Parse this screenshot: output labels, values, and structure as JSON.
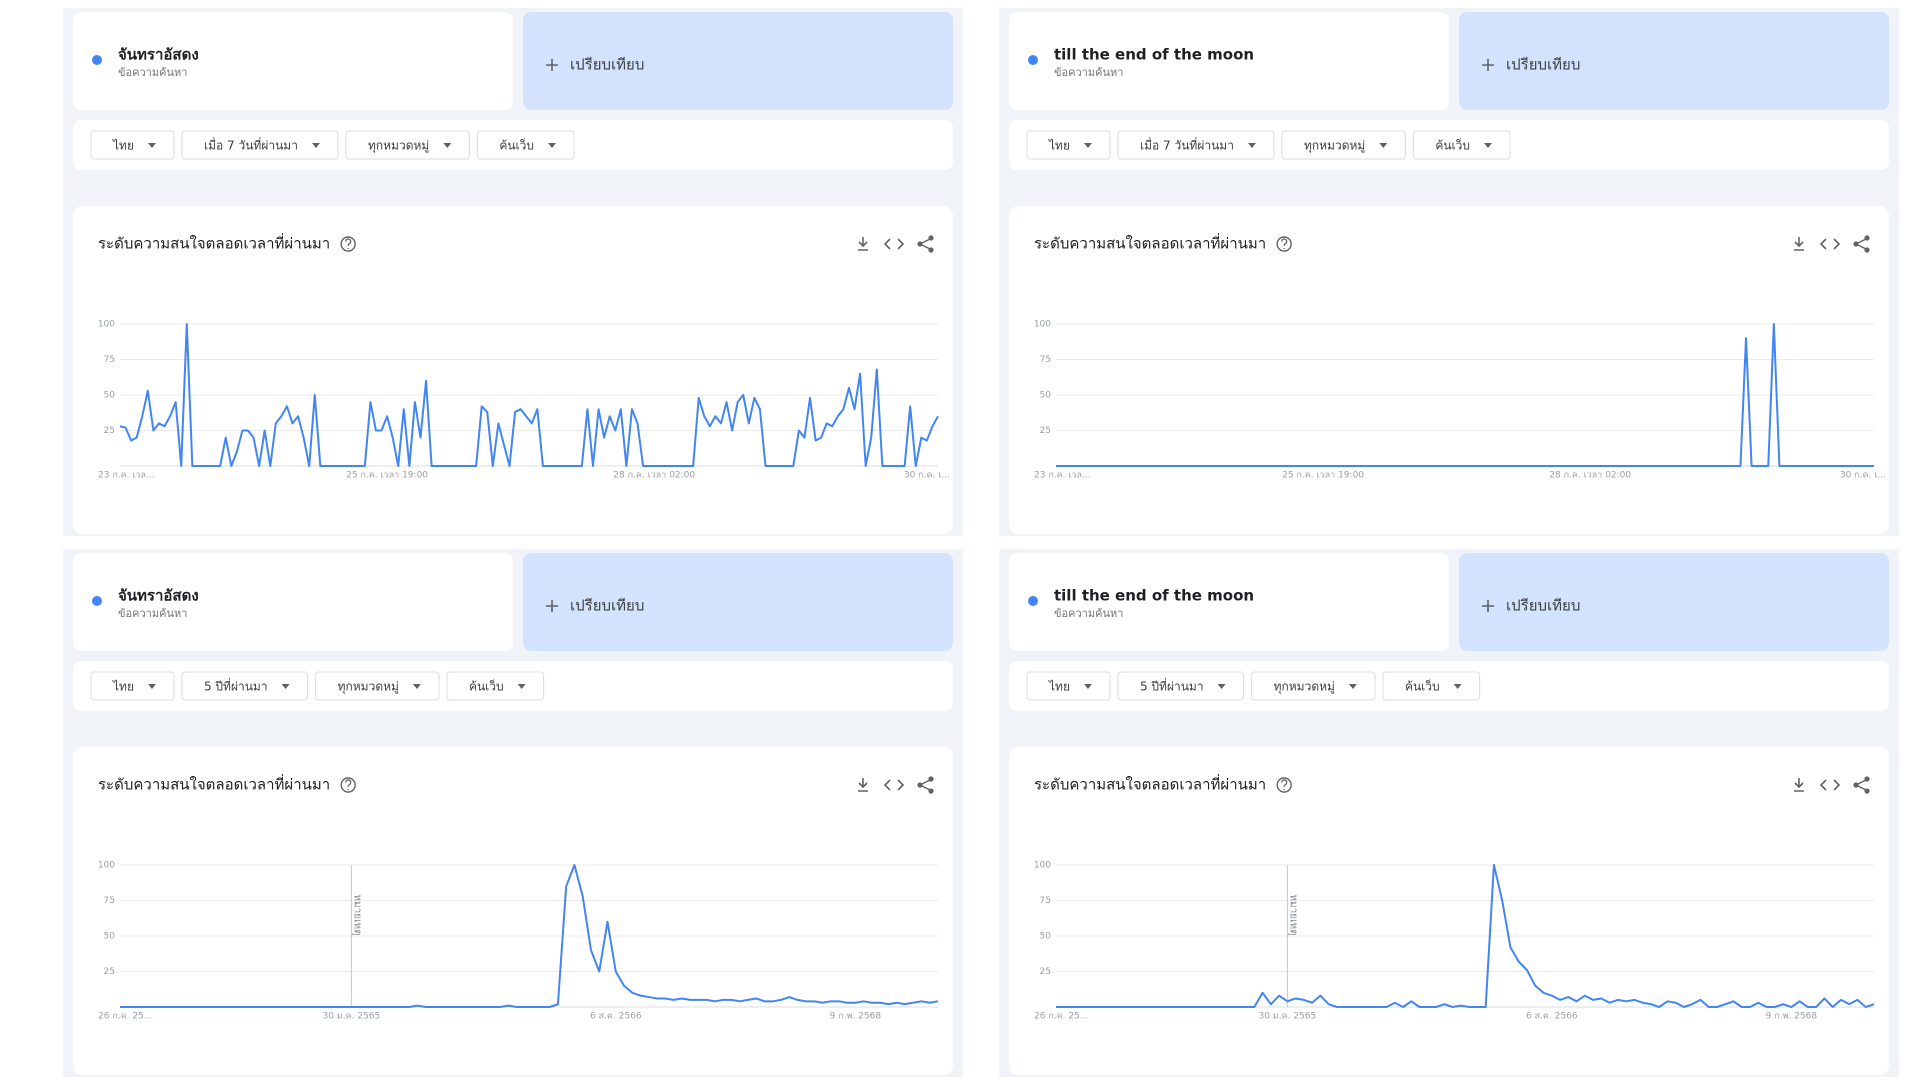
{
  "panels": [
    {
      "term": "จันทราอัสดง",
      "term_sub": "ข้อความค้นหา",
      "compare": "เปรียบเทียบ",
      "filters": [
        "ไทย",
        "เมื่อ 7 วันที่ผ่านมา",
        "ทุกหมวดหมู่",
        "ค้นเว็บ"
      ]
    },
    {
      "term": "till the end of the moon",
      "term_sub": "ข้อความค้นหา",
      "compare": "เปรียบเทียบ",
      "filters": [
        "ไทย",
        "เมื่อ 7 วันที่ผ่านมา",
        "ทุกหมวดหมู่",
        "ค้นเว็บ"
      ]
    },
    {
      "term": "จันทราอัสดง",
      "term_sub": "ข้อความค้นหา",
      "compare": "เปรียบเทียบ",
      "filters": [
        "ไทย",
        "5 ปีที่ผ่านมา",
        "ทุกหมวดหมู่",
        "ค้นเว็บ"
      ]
    },
    {
      "term": "till the end of the moon",
      "term_sub": "ข้อความค้นหา",
      "compare": "เปรียบเทียบ",
      "filters": [
        "ไทย",
        "5 ปีที่ผ่านมา",
        "ทุกหมวดหมู่",
        "ค้นเว็บ"
      ]
    }
  ],
  "chart_data": [
    {
      "type": "line",
      "title": "ระดับความสนใจตลอดเวลาที่ผ่านมา",
      "color": "#4285f4",
      "ylim": [
        0,
        100
      ],
      "yticks": [
        25,
        50,
        75,
        100
      ],
      "grid": true,
      "categories": [
        "23 ก.ค. เวล...",
        null,
        null,
        null,
        null,
        null,
        null,
        null,
        null,
        null,
        null,
        null,
        null,
        null,
        null,
        null,
        null,
        null,
        null,
        null,
        null,
        null,
        null,
        null,
        null,
        null,
        null,
        null,
        null,
        null,
        null,
        null,
        null,
        null,
        null,
        null,
        null,
        null,
        null,
        null,
        null,
        null,
        null,
        null,
        null,
        null,
        null,
        null,
        "25 ก.ค. เวลา 19:00",
        null,
        null,
        null,
        null,
        null,
        null,
        null,
        null,
        null,
        null,
        null,
        null,
        null,
        null,
        null,
        null,
        null,
        null,
        null,
        null,
        null,
        null,
        null,
        null,
        null,
        null,
        null,
        null,
        null,
        null,
        null,
        null,
        null,
        null,
        null,
        null,
        null,
        null,
        null,
        null,
        null,
        null,
        null,
        null,
        null,
        null,
        null,
        "28 ก.ค. เวลา 02:00",
        null,
        null,
        null,
        null,
        null,
        null,
        null,
        null,
        null,
        null,
        null,
        null,
        null,
        null,
        null,
        null,
        null,
        null,
        null,
        null,
        null,
        null,
        null,
        null,
        null,
        null,
        null,
        null,
        null,
        null,
        null,
        null,
        null,
        null,
        null,
        null,
        null,
        null,
        null,
        null,
        null,
        null,
        null,
        null,
        null,
        null,
        null,
        null,
        "30 ก.ค. เ...",
        null,
        null
      ],
      "values": [
        28,
        27,
        18,
        20,
        35,
        53,
        25,
        30,
        28,
        35,
        45,
        0,
        100,
        0,
        0,
        0,
        0,
        0,
        0,
        20,
        0,
        10,
        25,
        25,
        20,
        0,
        25,
        0,
        30,
        35,
        42,
        30,
        35,
        20,
        0,
        50,
        0,
        0,
        0,
        0,
        0,
        0,
        0,
        0,
        0,
        45,
        25,
        25,
        35,
        20,
        0,
        40,
        0,
        45,
        20,
        60,
        0,
        0,
        0,
        0,
        0,
        0,
        0,
        0,
        0,
        42,
        38,
        0,
        30,
        15,
        0,
        38,
        40,
        35,
        30,
        40,
        0,
        0,
        0,
        0,
        0,
        0,
        0,
        0,
        40,
        0,
        40,
        20,
        35,
        25,
        40,
        0,
        40,
        30,
        0,
        0,
        0,
        0,
        0,
        0,
        0,
        0,
        0,
        0,
        48,
        35,
        28,
        35,
        30,
        45,
        25,
        45,
        50,
        30,
        48,
        40,
        0,
        0,
        0,
        0,
        0,
        0,
        25,
        20,
        48,
        18,
        20,
        30,
        28,
        35,
        40,
        55,
        40,
        65,
        0,
        20,
        68,
        0,
        0,
        0,
        0,
        0,
        42,
        0,
        20,
        18,
        28,
        35
      ]
    },
    {
      "type": "line",
      "title": "ระดับความสนใจตลอดเวลาที่ผ่านมา",
      "color": "#4285f4",
      "ylim": [
        0,
        100
      ],
      "yticks": [
        25,
        50,
        75,
        100
      ],
      "grid": true,
      "categories": [
        "23 ก.ค. เวล...",
        null,
        null,
        null,
        null,
        null,
        null,
        null,
        null,
        null,
        null,
        null,
        null,
        null,
        null,
        null,
        null,
        null,
        null,
        null,
        null,
        null,
        null,
        null,
        null,
        null,
        null,
        null,
        null,
        null,
        null,
        null,
        null,
        null,
        null,
        null,
        null,
        null,
        null,
        null,
        null,
        null,
        null,
        null,
        null,
        null,
        null,
        null,
        "25 ก.ค. เวลา 19:00",
        null,
        null,
        null,
        null,
        null,
        null,
        null,
        null,
        null,
        null,
        null,
        null,
        null,
        null,
        null,
        null,
        null,
        null,
        null,
        null,
        null,
        null,
        null,
        null,
        null,
        null,
        null,
        null,
        null,
        null,
        null,
        null,
        null,
        null,
        null,
        null,
        null,
        null,
        null,
        null,
        null,
        null,
        null,
        null,
        null,
        null,
        null,
        "28 ก.ค. เวลา 02:00",
        null,
        null,
        null,
        null,
        null,
        null,
        null,
        null,
        null,
        null,
        null,
        null,
        null,
        null,
        null,
        null,
        null,
        null,
        null,
        null,
        null,
        null,
        null,
        null,
        null,
        null,
        null,
        null,
        null,
        null,
        null,
        null,
        null,
        null,
        null,
        null,
        null,
        null,
        null,
        null,
        null,
        null,
        null,
        null,
        null,
        null,
        null,
        null,
        "30 ก.ค. เ...",
        null,
        null
      ],
      "values": [
        0,
        0,
        0,
        0,
        0,
        0,
        0,
        0,
        0,
        0,
        0,
        0,
        0,
        0,
        0,
        0,
        0,
        0,
        0,
        0,
        0,
        0,
        0,
        0,
        0,
        0,
        0,
        0,
        0,
        0,
        0,
        0,
        0,
        0,
        0,
        0,
        0,
        0,
        0,
        0,
        0,
        0,
        0,
        0,
        0,
        0,
        0,
        0,
        0,
        0,
        0,
        0,
        0,
        0,
        0,
        0,
        0,
        0,
        0,
        0,
        0,
        0,
        0,
        0,
        0,
        0,
        0,
        0,
        0,
        0,
        0,
        0,
        0,
        0,
        0,
        0,
        0,
        0,
        0,
        0,
        0,
        0,
        0,
        0,
        0,
        0,
        0,
        0,
        0,
        0,
        0,
        0,
        0,
        0,
        0,
        0,
        0,
        0,
        0,
        0,
        0,
        0,
        0,
        0,
        0,
        0,
        0,
        0,
        0,
        0,
        0,
        0,
        0,
        0,
        0,
        0,
        0,
        0,
        0,
        0,
        0,
        0,
        0,
        0,
        90,
        0,
        0,
        0,
        0,
        100,
        0,
        0,
        0,
        0,
        0,
        0,
        0,
        0,
        0,
        0,
        0,
        0,
        0,
        0,
        0,
        0,
        0,
        0
      ]
    },
    {
      "type": "line",
      "title": "ระดับความสนใจตลอดเวลาที่ผ่านมา",
      "color": "#4285f4",
      "ylim": [
        0,
        100
      ],
      "yticks": [
        25,
        50,
        75,
        100
      ],
      "grid": true,
      "annotations": [
        {
          "x": "30 ม.ค. 2565",
          "text": "หมายเหตุ"
        }
      ],
      "categories": [
        "26 ก.ค. 25...",
        null,
        null,
        null,
        null,
        null,
        null,
        null,
        null,
        null,
        null,
        null,
        null,
        null,
        null,
        null,
        null,
        null,
        null,
        null,
        null,
        null,
        null,
        null,
        null,
        null,
        null,
        null,
        "30 ม.ค. 2565",
        null,
        null,
        null,
        null,
        null,
        null,
        null,
        null,
        null,
        null,
        null,
        null,
        null,
        null,
        null,
        null,
        null,
        null,
        null,
        null,
        null,
        null,
        null,
        null,
        null,
        null,
        null,
        null,
        null,
        null,
        null,
        "6 ส.ค. 2566",
        null,
        null,
        null,
        null,
        null,
        null,
        null,
        null,
        null,
        null,
        null,
        null,
        null,
        null,
        null,
        null,
        null,
        null,
        null,
        null,
        null,
        null,
        null,
        null,
        null,
        null,
        null,
        null,
        "9 ก.พ. 2568",
        null,
        null,
        null,
        null,
        null,
        null,
        null,
        null,
        null,
        null
      ],
      "values": [
        0,
        0,
        0,
        0,
        0,
        0,
        0,
        0,
        0,
        0,
        0,
        0,
        0,
        0,
        0,
        0,
        0,
        0,
        0,
        0,
        0,
        0,
        0,
        0,
        0,
        0,
        0,
        0,
        0,
        0,
        0,
        0,
        0,
        0,
        0,
        0,
        1,
        0,
        0,
        0,
        0,
        0,
        0,
        0,
        0,
        0,
        0,
        1,
        0,
        0,
        0,
        0,
        0,
        2,
        85,
        100,
        78,
        40,
        25,
        60,
        25,
        15,
        10,
        8,
        7,
        6,
        6,
        5,
        6,
        5,
        5,
        5,
        4,
        5,
        5,
        4,
        5,
        6,
        4,
        4,
        5,
        7,
        5,
        4,
        4,
        3,
        4,
        4,
        3,
        3,
        4,
        3,
        3,
        2,
        3,
        2,
        3,
        4,
        3,
        4
      ]
    },
    {
      "type": "line",
      "title": "ระดับความสนใจตลอดเวลาที่ผ่านมา",
      "color": "#4285f4",
      "ylim": [
        0,
        100
      ],
      "yticks": [
        25,
        50,
        75,
        100
      ],
      "grid": true,
      "annotations": [
        {
          "x": "30 ม.ค. 2565",
          "text": "หมายเหตุ"
        }
      ],
      "categories": [
        "26 ก.ค. 25...",
        null,
        null,
        null,
        null,
        null,
        null,
        null,
        null,
        null,
        null,
        null,
        null,
        null,
        null,
        null,
        null,
        null,
        null,
        null,
        null,
        null,
        null,
        null,
        null,
        null,
        null,
        null,
        "30 ม.ค. 2565",
        null,
        null,
        null,
        null,
        null,
        null,
        null,
        null,
        null,
        null,
        null,
        null,
        null,
        null,
        null,
        null,
        null,
        null,
        null,
        null,
        null,
        null,
        null,
        null,
        null,
        null,
        null,
        null,
        null,
        null,
        null,
        "6 ส.ค. 2566",
        null,
        null,
        null,
        null,
        null,
        null,
        null,
        null,
        null,
        null,
        null,
        null,
        null,
        null,
        null,
        null,
        null,
        null,
        null,
        null,
        null,
        null,
        null,
        null,
        null,
        null,
        null,
        null,
        "9 ก.พ. 2568",
        null,
        null,
        null,
        null,
        null,
        null,
        null,
        null,
        null,
        null
      ],
      "values": [
        0,
        0,
        0,
        0,
        0,
        0,
        0,
        0,
        0,
        0,
        0,
        0,
        0,
        0,
        0,
        0,
        0,
        0,
        0,
        0,
        0,
        0,
        0,
        0,
        0,
        10,
        2,
        8,
        4,
        6,
        5,
        3,
        8,
        2,
        0,
        0,
        0,
        0,
        0,
        0,
        0,
        3,
        0,
        4,
        0,
        0,
        0,
        2,
        0,
        1,
        0,
        0,
        0,
        100,
        75,
        42,
        32,
        26,
        15,
        10,
        8,
        5,
        7,
        4,
        8,
        5,
        6,
        3,
        5,
        4,
        5,
        3,
        2,
        0,
        4,
        3,
        0,
        2,
        5,
        0,
        0,
        2,
        4,
        0,
        0,
        3,
        0,
        0,
        2,
        0,
        4,
        0,
        0,
        6,
        0,
        5,
        2,
        5,
        0,
        2
      ]
    }
  ]
}
